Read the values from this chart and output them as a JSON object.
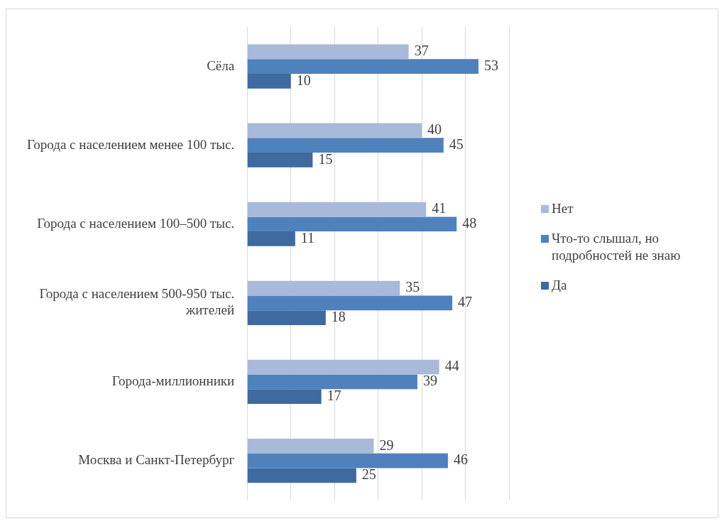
{
  "chart_data": {
    "type": "bar",
    "orientation": "horizontal",
    "categories": [
      "Сёла",
      "Города с населением менее 100 тыс.",
      "Города с населением 100–500 тыс.",
      "Города с населением 500-950 тыс. жителей",
      "Города-миллионники",
      "Москва и Санкт-Петербург"
    ],
    "series": [
      {
        "name": "Нет",
        "color": "#a9b9da",
        "values": [
          37,
          40,
          41,
          35,
          44,
          29
        ]
      },
      {
        "name": "Что-то слышал, но подробностей не знаю",
        "color": "#4f81bd",
        "values": [
          53,
          45,
          48,
          47,
          39,
          46
        ]
      },
      {
        "name": "Да",
        "color": "#3e6aa0",
        "values": [
          10,
          15,
          11,
          18,
          17,
          25
        ]
      }
    ],
    "xlim": [
      0,
      60
    ],
    "xticks": [
      {
        "value": 0,
        "label": null
      },
      {
        "value": 10,
        "label": null
      },
      {
        "value": 20,
        "label": null
      },
      {
        "value": 30,
        "label": null
      },
      {
        "value": 40,
        "label": null
      },
      {
        "value": 50,
        "label": null
      },
      {
        "value": 60,
        "label": null
      }
    ],
    "tick_labels": "y",
    "grid": "x",
    "legend": "right",
    "data_labels": true
  }
}
